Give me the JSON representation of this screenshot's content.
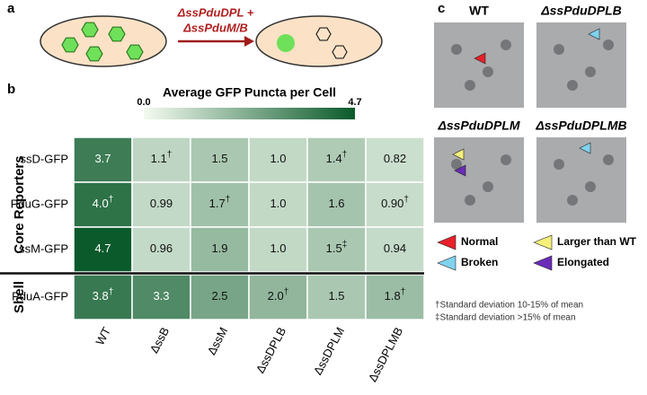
{
  "panels": {
    "a": {
      "label": "a",
      "arrow_text": [
        "ΔssPduDPL +",
        "ΔssPduM/B"
      ]
    },
    "b": {
      "label": "b"
    },
    "c": {
      "label": "c",
      "images": [
        "WT",
        "ΔssPduDPLB",
        "ΔssPduDPLM",
        "ΔssPduDPLMB"
      ],
      "legend": [
        {
          "name": "Normal",
          "color": "#e8202a"
        },
        {
          "name": "Larger than WT",
          "color": "#f5f07a"
        },
        {
          "name": "Broken",
          "color": "#7fd3ef"
        },
        {
          "name": "Elongated",
          "color": "#6a2bb8"
        }
      ]
    }
  },
  "chart_data": {
    "type": "heatmap",
    "rows": [
      "ssD-GFP",
      "PduG-GFP",
      "ssM-GFP",
      "PduA-GFP"
    ],
    "row_groups": [
      {
        "name": "Core Reporters",
        "rows": [
          0,
          1,
          2
        ]
      },
      {
        "name": "Shell",
        "rows": [
          3
        ]
      }
    ],
    "columns": [
      "WT",
      "ΔssB",
      "ΔssM",
      "ΔssDPLB",
      "ΔssDPLM",
      "ΔssDPLMB"
    ],
    "values": [
      [
        3.7,
        1.1,
        1.5,
        1.0,
        1.4,
        0.82
      ],
      [
        4.0,
        0.99,
        1.7,
        1.0,
        1.6,
        0.9
      ],
      [
        4.7,
        0.96,
        1.9,
        1.0,
        1.5,
        0.94
      ],
      [
        3.8,
        3.3,
        2.5,
        2.0,
        1.5,
        1.8
      ]
    ],
    "value_labels": [
      [
        "3.7",
        "1.1",
        "1.5",
        "1.0",
        "1.4",
        "0.82"
      ],
      [
        "4.0",
        "0.99",
        "1.7",
        "1.0",
        "1.6",
        "0.90"
      ],
      [
        "4.7",
        "0.96",
        "1.9",
        "1.0",
        "1.5",
        "0.94"
      ],
      [
        "3.8",
        "3.3",
        "2.5",
        "2.0",
        "1.5",
        "1.8"
      ]
    ],
    "marks": [
      [
        null,
        "†",
        null,
        null,
        "†",
        null
      ],
      [
        "†",
        null,
        "†",
        null,
        null,
        "†"
      ],
      [
        null,
        null,
        null,
        null,
        "‡",
        null
      ],
      [
        "†",
        null,
        null,
        "†",
        null,
        "†"
      ]
    ],
    "colorbar": {
      "title": "Average GFP Puncta per Cell",
      "range": [
        0,
        4.7
      ],
      "ticks": [
        {
          "value": 0,
          "label": "0.0"
        },
        4.7
      ]
    },
    "colorscale": [
      "#f4fbf0",
      "#0b5a2b"
    ],
    "footnotes": [
      "†Standard deviation 10-15% of mean",
      "‡Standard deviation >15% of mean"
    ]
  }
}
